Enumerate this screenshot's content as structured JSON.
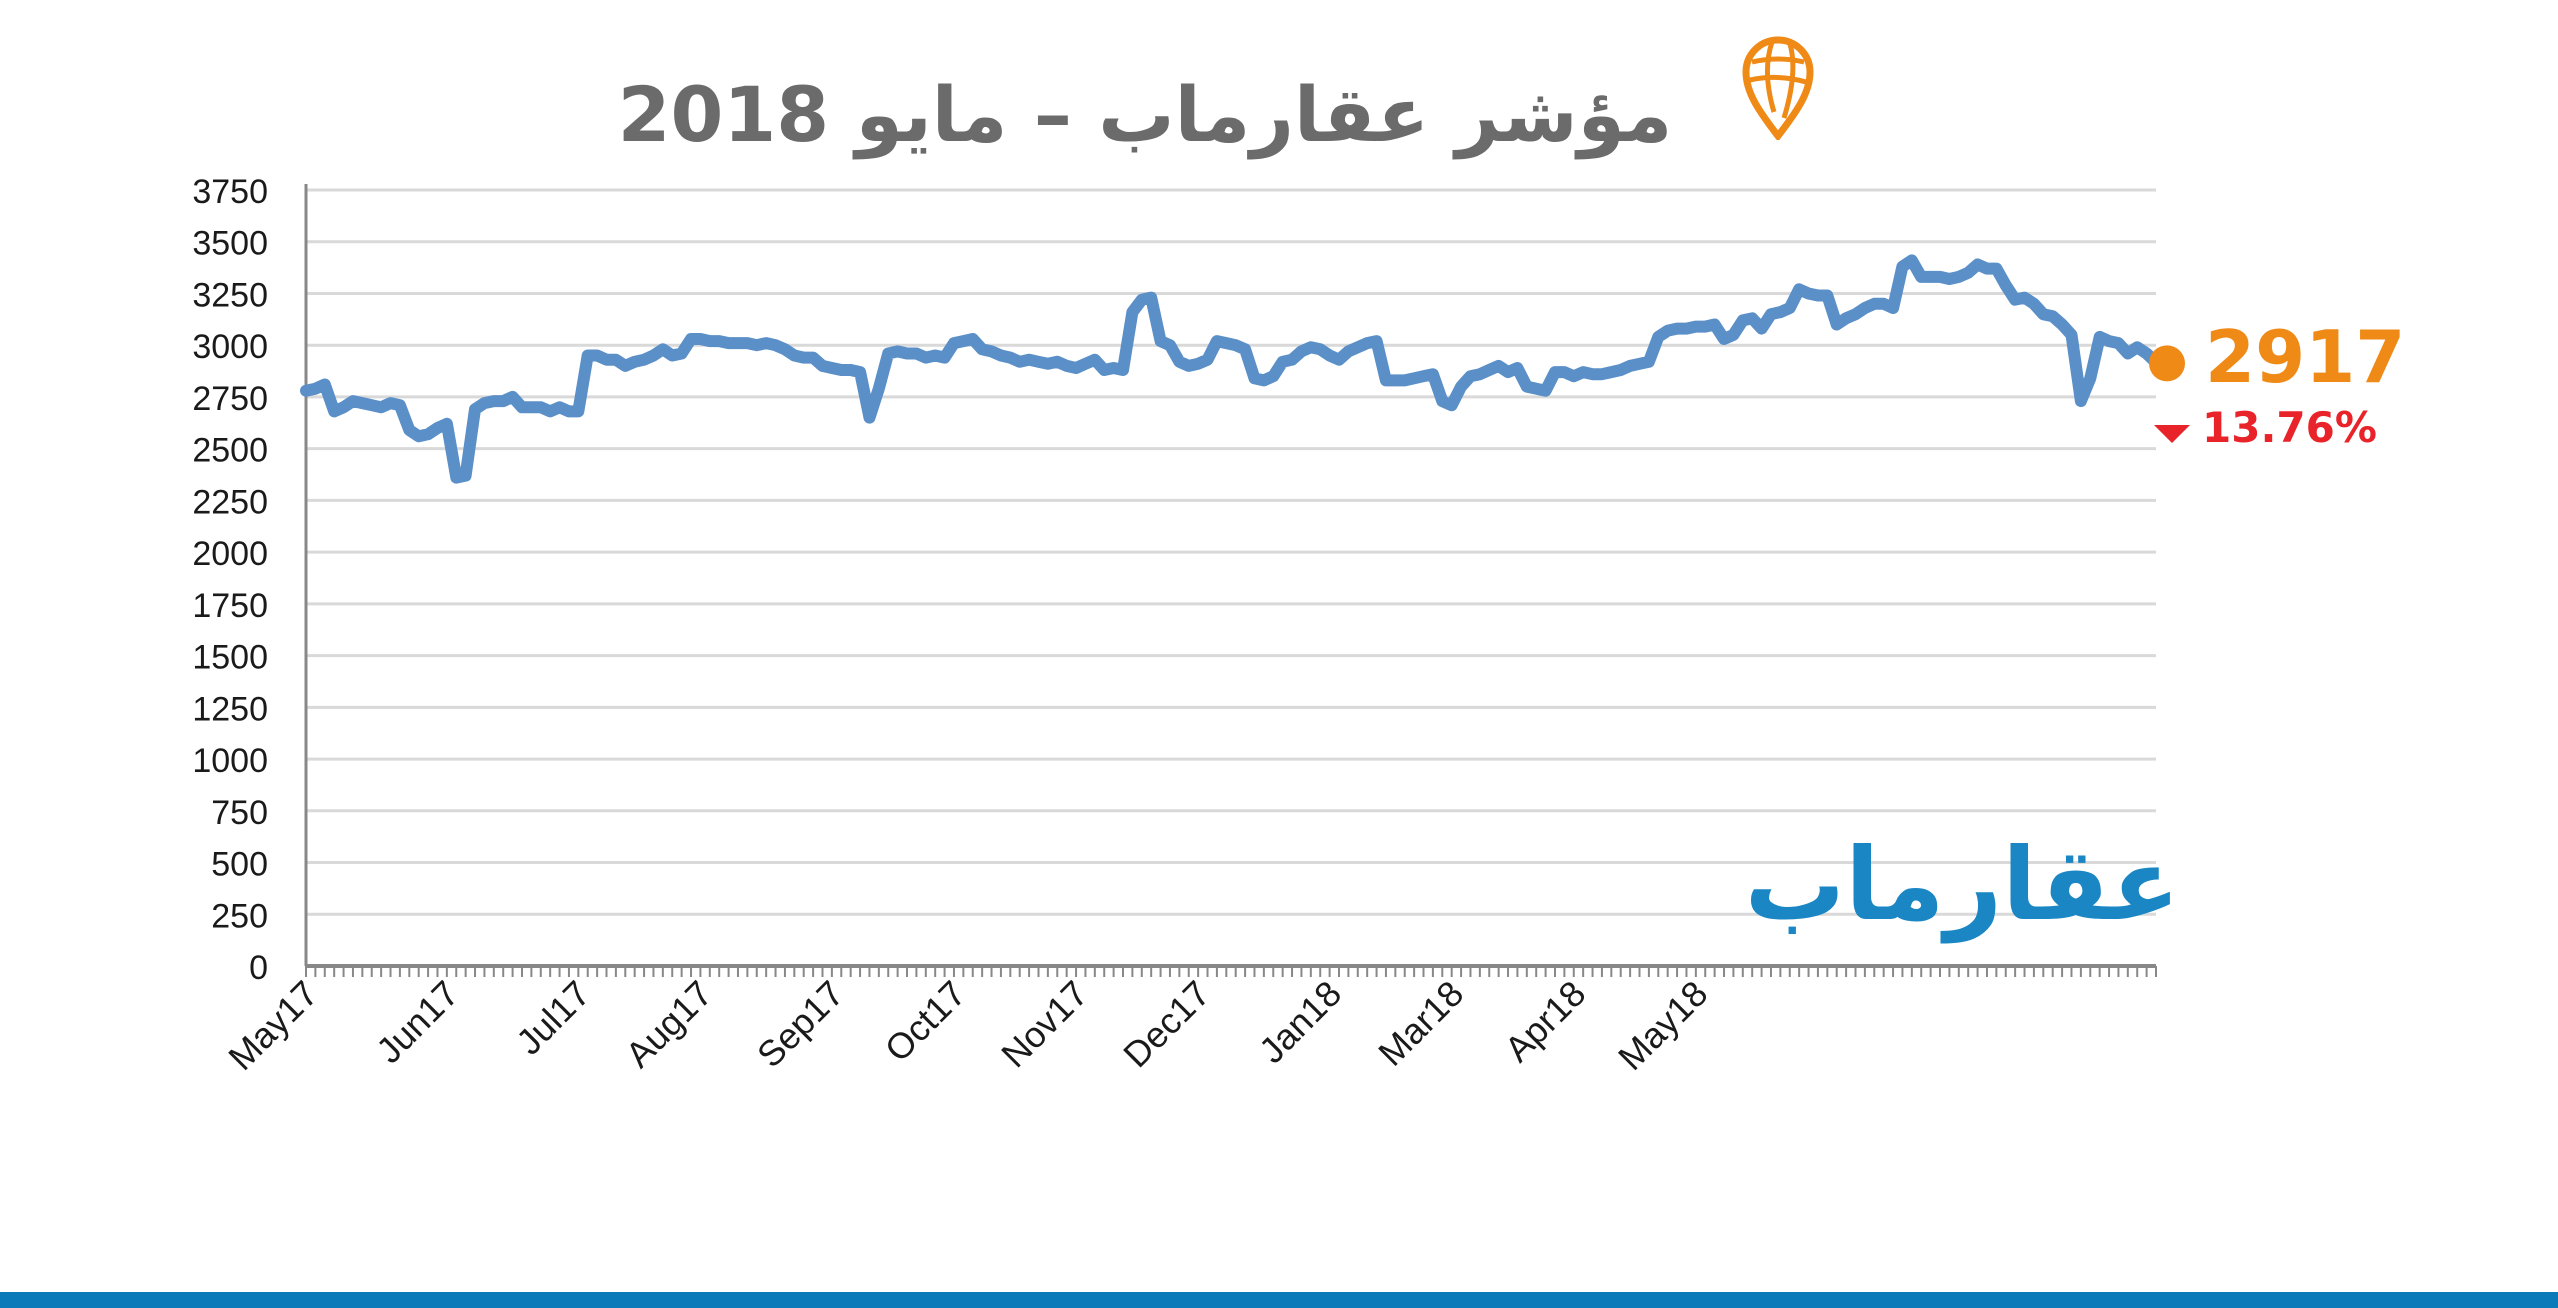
{
  "chart_data": {
    "type": "line",
    "title": "مؤشر عقارماب – مايو 2018",
    "xlabel": "",
    "ylabel": "",
    "ylim": [
      0,
      3750
    ],
    "yticks": [
      0,
      250,
      500,
      750,
      1000,
      1250,
      1500,
      1750,
      2000,
      2250,
      2500,
      2750,
      3000,
      3250,
      3500,
      3750
    ],
    "grid": true,
    "month_labels": [
      "May17",
      "Jun17",
      "Jul17",
      "Aug17",
      "Sep17",
      "Oct17",
      "Nov17",
      "Dec17",
      "Jan18",
      "Mar18",
      "Apr18",
      "May18"
    ],
    "month_label_positions": [
      0,
      15,
      29,
      42,
      56,
      69,
      82,
      95,
      109,
      122,
      135,
      148
    ],
    "series": [
      {
        "values": [
          2780,
          2790,
          2810,
          2680,
          2700,
          2730,
          2720,
          2710,
          2700,
          2720,
          2710,
          2590,
          2560,
          2570,
          2600,
          2620,
          2360,
          2370,
          2690,
          2720,
          2730,
          2730,
          2750,
          2700,
          2700,
          2700,
          2680,
          2700,
          2680,
          2680,
          2950,
          2950,
          2930,
          2930,
          2900,
          2920,
          2930,
          2950,
          2980,
          2950,
          2960,
          3030,
          3030,
          3020,
          3020,
          3010,
          3010,
          3010,
          3000,
          3010,
          3000,
          2980,
          2950,
          2940,
          2940,
          2900,
          2890,
          2880,
          2880,
          2870,
          2650,
          2790,
          2960,
          2970,
          2960,
          2960,
          2940,
          2950,
          2940,
          3010,
          3020,
          3030,
          2980,
          2970,
          2950,
          2940,
          2920,
          2930,
          2920,
          2910,
          2920,
          2900,
          2890,
          2910,
          2930,
          2880,
          2890,
          2880,
          3160,
          3220,
          3230,
          3020,
          3000,
          2920,
          2900,
          2910,
          2930,
          3020,
          3010,
          3000,
          2980,
          2840,
          2830,
          2850,
          2920,
          2930,
          2970,
          2990,
          2980,
          2950,
          2930,
          2970,
          2990,
          3010,
          3020,
          2830,
          2830,
          2830,
          2840,
          2850,
          2860,
          2730,
          2710,
          2800,
          2850,
          2860,
          2880,
          2900,
          2870,
          2890,
          2800,
          2790,
          2780,
          2870,
          2870,
          2850,
          2870,
          2860,
          2860,
          2870,
          2880,
          2900,
          2910,
          2920,
          3040,
          3070,
          3080,
          3080,
          3090,
          3090,
          3100,
          3030,
          3050,
          3120,
          3130,
          3080,
          3150,
          3160,
          3180,
          3270,
          3250,
          3240,
          3240,
          3100,
          3130,
          3150,
          3180,
          3200,
          3200,
          3180,
          3380,
          3410,
          3330,
          3330,
          3330,
          3320,
          3330,
          3350,
          3390,
          3370,
          3370,
          3290,
          3220,
          3230,
          3200,
          3150,
          3140,
          3100,
          3050,
          2730,
          2840,
          3040,
          3020,
          3010,
          2960,
          2990,
          2960,
          2917
        ]
      }
    ],
    "last_value": "2917",
    "change": "13.76%",
    "change_direction": "down",
    "colors": {
      "line": "#5b8fc8",
      "marker": "#ef8a17",
      "change": "#e8232a",
      "grid": "#d9d9d9",
      "axis": "#888888"
    }
  },
  "brand": {
    "name": "عقارماب",
    "color": "#1a86c4",
    "bar_color": "#0a7ab8"
  },
  "icons": {
    "pin": "map-pin-globe-icon",
    "change": "down-arrow-icon"
  }
}
